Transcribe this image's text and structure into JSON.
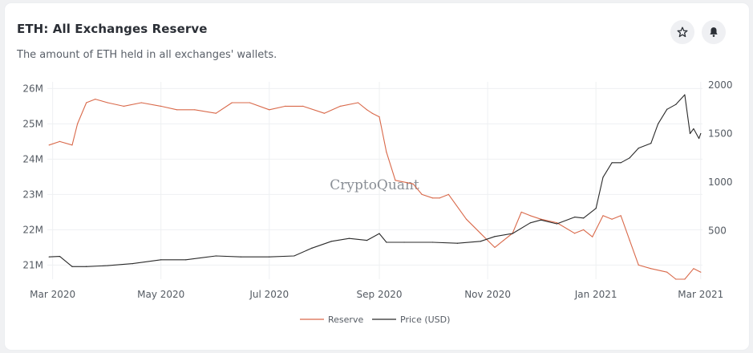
{
  "header": {
    "title": "ETH: All Exchanges Reserve",
    "subtitle": "The amount of ETH held in all exchanges' wallets."
  },
  "actions": {
    "star_icon": "star-outline-icon",
    "bell_icon": "bell-icon"
  },
  "watermark": "CryptoQuant",
  "colors": {
    "reserve": "#d9694a",
    "price": "#2a2a2a",
    "grid": "#eef0f2"
  },
  "chart_data": {
    "type": "line",
    "title": "ETH: All Exchanges Reserve",
    "xlabel": "",
    "x_ticks": [
      "Mar 2020",
      "May 2020",
      "Jul 2020",
      "Sep 2020",
      "Nov 2020",
      "Jan 2021",
      "Mar 2021"
    ],
    "y_left": {
      "ticks": [
        "21M",
        "22M",
        "23M",
        "24M",
        "25M",
        "26M"
      ],
      "range": [
        20.6,
        26.1
      ]
    },
    "y_right": {
      "ticks": [
        "500",
        "1000",
        "1500",
        "2000"
      ],
      "range": [
        0,
        2000
      ]
    },
    "grid": true,
    "legend_position": "bottom",
    "series": [
      {
        "name": "Reserve",
        "axis": "left",
        "x": [
          "2020-02-28",
          "2020-03-05",
          "2020-03-12",
          "2020-03-15",
          "2020-03-20",
          "2020-03-25",
          "2020-04-01",
          "2020-04-10",
          "2020-04-20",
          "2020-05-01",
          "2020-05-10",
          "2020-05-20",
          "2020-06-01",
          "2020-06-10",
          "2020-06-20",
          "2020-07-01",
          "2020-07-10",
          "2020-07-20",
          "2020-08-01",
          "2020-08-10",
          "2020-08-20",
          "2020-08-25",
          "2020-08-28",
          "2020-09-01",
          "2020-09-05",
          "2020-09-10",
          "2020-09-20",
          "2020-09-25",
          "2020-10-01",
          "2020-10-05",
          "2020-10-10",
          "2020-10-20",
          "2020-10-28",
          "2020-11-01",
          "2020-11-05",
          "2020-11-10",
          "2020-11-15",
          "2020-11-20",
          "2020-11-25",
          "2020-12-01",
          "2020-12-10",
          "2020-12-20",
          "2020-12-25",
          "2020-12-30",
          "2021-01-05",
          "2021-01-10",
          "2021-01-15",
          "2021-01-20",
          "2021-01-25",
          "2021-02-01",
          "2021-02-10",
          "2021-02-15",
          "2021-02-20",
          "2021-02-25",
          "2021-03-01"
        ],
        "values": [
          24.4,
          24.5,
          24.4,
          25.0,
          25.6,
          25.7,
          25.6,
          25.5,
          25.6,
          25.5,
          25.4,
          25.4,
          25.3,
          25.6,
          25.6,
          25.4,
          25.5,
          25.5,
          25.3,
          25.5,
          25.6,
          25.4,
          25.3,
          25.2,
          24.2,
          23.4,
          23.3,
          23.0,
          22.9,
          22.9,
          23.0,
          22.3,
          21.9,
          21.7,
          21.5,
          21.7,
          21.9,
          22.5,
          22.4,
          22.3,
          22.2,
          21.9,
          22.0,
          21.8,
          22.4,
          22.3,
          22.4,
          21.7,
          21.0,
          20.9,
          20.8,
          20.6,
          20.6,
          20.9,
          20.8
        ]
      },
      {
        "name": "Price (USD)",
        "axis": "right",
        "x": [
          "2020-02-28",
          "2020-03-05",
          "2020-03-12",
          "2020-03-20",
          "2020-04-01",
          "2020-04-15",
          "2020-05-01",
          "2020-05-15",
          "2020-06-01",
          "2020-06-15",
          "2020-07-01",
          "2020-07-15",
          "2020-07-25",
          "2020-08-05",
          "2020-08-15",
          "2020-08-25",
          "2020-09-01",
          "2020-09-05",
          "2020-09-15",
          "2020-10-01",
          "2020-10-15",
          "2020-10-28",
          "2020-11-05",
          "2020-11-15",
          "2020-11-25",
          "2020-12-01",
          "2020-12-10",
          "2020-12-20",
          "2020-12-25",
          "2021-01-01",
          "2021-01-05",
          "2021-01-10",
          "2021-01-15",
          "2021-01-20",
          "2021-01-25",
          "2021-02-01",
          "2021-02-05",
          "2021-02-10",
          "2021-02-15",
          "2021-02-20",
          "2021-02-23",
          "2021-02-25",
          "2021-02-28",
          "2021-03-01"
        ],
        "values": [
          230,
          235,
          130,
          130,
          140,
          160,
          200,
          200,
          240,
          230,
          230,
          240,
          320,
          390,
          420,
          400,
          470,
          380,
          380,
          380,
          370,
          390,
          440,
          470,
          580,
          610,
          570,
          640,
          630,
          730,
          1050,
          1200,
          1200,
          1250,
          1350,
          1400,
          1600,
          1750,
          1800,
          1900,
          1500,
          1550,
          1450,
          1500
        ]
      }
    ]
  }
}
